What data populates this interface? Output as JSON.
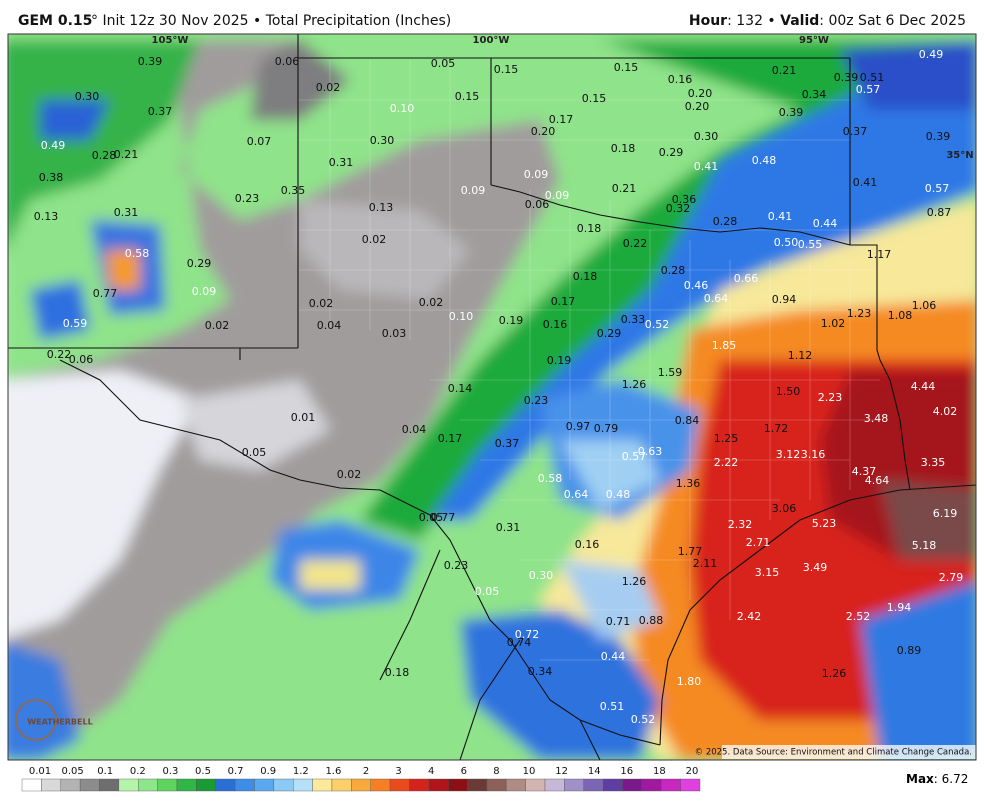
{
  "header": {
    "model": "GEM 0.15",
    "info": "° Init 12z 30 Nov 2025 • Total Precipitation (Inches)",
    "hour_key": "Hour",
    "hour_val": ": 132 • ",
    "valid_key": "Valid",
    "valid_val": ": 00z Sat 6 Dec 2025"
  },
  "map": {
    "graticule": [
      "105°W",
      "100°W",
      "95°W",
      "35°N"
    ],
    "labels": [
      "0.39",
      "0.30",
      "0.37",
      "0.49",
      "0.28",
      "0.21",
      "0.38",
      "0.13",
      "0.31",
      "0.23",
      "0.35",
      "0.58",
      "0.29",
      "0.77",
      "0.09",
      "0.59",
      "0.02",
      "0.22",
      "0.06",
      "0.06",
      "0.02",
      "0.05",
      "0.15",
      "0.10",
      "0.07",
      "0.30",
      "0.31",
      "0.13",
      "0.02",
      "0.09",
      "0.15",
      "0.17",
      "0.20",
      "0.09",
      "0.06",
      "0.09",
      "0.02",
      "0.04",
      "0.02",
      "0.03",
      "0.10",
      "0.15",
      "0.16",
      "0.21",
      "0.20",
      "0.15",
      "0.20",
      "0.34",
      "0.39",
      "0.51",
      "0.57",
      "0.49",
      "0.39",
      "0.37",
      "0.39",
      "0.30",
      "0.18",
      "0.29",
      "0.41",
      "0.48",
      "0.41",
      "0.57",
      "0.87",
      "0.21",
      "0.36",
      "0.32",
      "0.41",
      "0.28",
      "0.44",
      "0.18",
      "0.22",
      "0.50",
      "0.55",
      "1.17",
      "0.28",
      "0.18",
      "0.66",
      "0.46",
      "0.94",
      "0.64",
      "1.06",
      "0.17",
      "1.23",
      "1.08",
      "0.19",
      "0.16",
      "0.33",
      "0.52",
      "0.29",
      "1.02",
      "1.85",
      "1.12",
      "0.19",
      "1.59",
      "1.26",
      "4.44",
      "0.14",
      "1.50",
      "2.23",
      "4.02",
      "0.01",
      "3.48",
      "0.23",
      "0.84",
      "0.04",
      "0.97",
      "0.79",
      "1.72",
      "1.25",
      "0.17",
      "0.37",
      "0.63",
      "0.57",
      "3.12",
      "3.16",
      "0.05",
      "2.22",
      "3.35",
      "4.37",
      "4.64",
      "0.02",
      "0.58",
      "1.36",
      "0.64",
      "0.48",
      "3.06",
      "6.19",
      "0.05",
      "0.77",
      "0.31",
      "5.23",
      "2.32",
      "0.16",
      "2.71",
      "5.18",
      "1.77",
      "0.23",
      "2.11",
      "3.15",
      "3.49",
      "0.30",
      "2.79",
      "1.26",
      "0.05",
      "1.94",
      "2.42",
      "2.52",
      "0.71",
      "0.88",
      "0.72",
      "0.74",
      "0.44",
      "0.89",
      "0.18",
      "0.34",
      "1.26",
      "1.80",
      "0.51",
      "0.52"
    ],
    "logo": "WEATHERBELL",
    "copyright": "© 2025. Data Source: Environment and Climate Change Canada."
  },
  "legend": {
    "labels": [
      "0.01",
      "0.05",
      "0.1",
      "0.2",
      "0.3",
      "0.5",
      "0.7",
      "0.9",
      "1.2",
      "1.6",
      "2",
      "3",
      "4",
      "6",
      "8",
      "10",
      "12",
      "14",
      "16",
      "18",
      "20"
    ],
    "max_key": "Max",
    "max_val": ": 6.72"
  }
}
